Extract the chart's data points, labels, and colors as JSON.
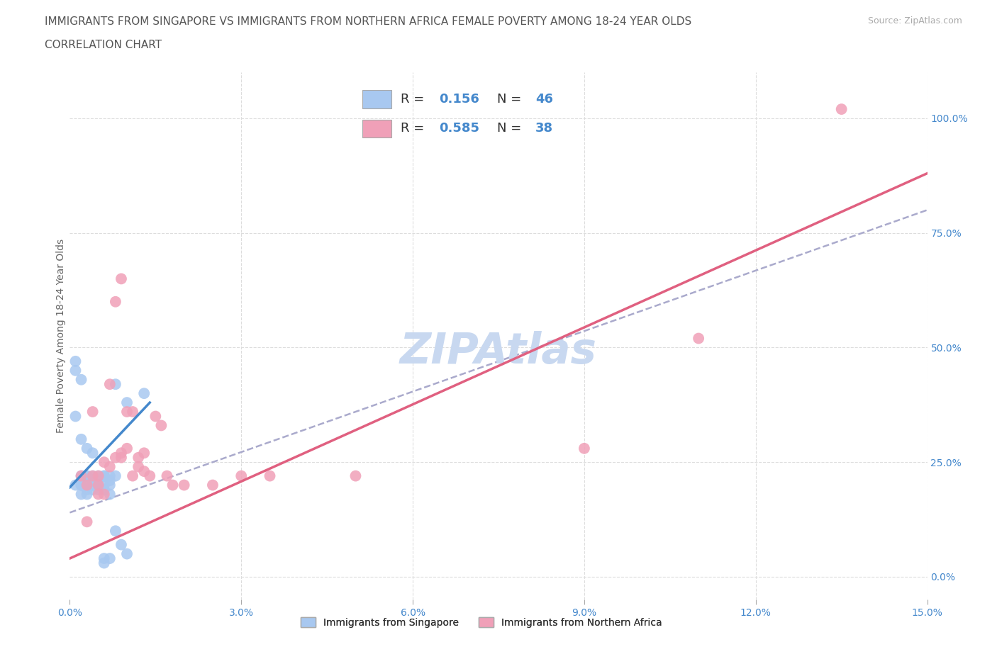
{
  "title_line1": "IMMIGRANTS FROM SINGAPORE VS IMMIGRANTS FROM NORTHERN AFRICA FEMALE POVERTY AMONG 18-24 YEAR OLDS",
  "title_line2": "CORRELATION CHART",
  "source_text": "Source: ZipAtlas.com",
  "ylabel": "Female Poverty Among 18-24 Year Olds",
  "xlim": [
    0.0,
    0.15
  ],
  "ylim": [
    -0.05,
    1.1
  ],
  "right_yticks": [
    0.0,
    0.25,
    0.5,
    0.75,
    1.0
  ],
  "right_yticklabels": [
    "0.0%",
    "25.0%",
    "50.0%",
    "75.0%",
    "100.0%"
  ],
  "xticks": [
    0.0,
    0.03,
    0.06,
    0.09,
    0.12,
    0.15
  ],
  "xticklabels": [
    "0.0%",
    "3.0%",
    "6.0%",
    "9.0%",
    "12.0%",
    "15.0%"
  ],
  "singapore_color": "#a8c8f0",
  "northern_africa_color": "#f0a0b8",
  "singapore_line_color": "#4488cc",
  "northern_africa_line_color": "#e06080",
  "dashed_line_color": "#aaaacc",
  "watermark_text": "ZIPAtlas",
  "watermark_color": "#c8d8f0",
  "background_color": "#ffffff",
  "grid_color": "#dddddd",
  "singapore_scatter": [
    [
      0.001,
      0.2
    ],
    [
      0.002,
      0.22
    ],
    [
      0.002,
      0.2
    ],
    [
      0.002,
      0.18
    ],
    [
      0.002,
      0.2
    ],
    [
      0.003,
      0.22
    ],
    [
      0.003,
      0.2
    ],
    [
      0.003,
      0.19
    ],
    [
      0.003,
      0.18
    ],
    [
      0.003,
      0.22
    ],
    [
      0.004,
      0.22
    ],
    [
      0.004,
      0.21
    ],
    [
      0.004,
      0.2
    ],
    [
      0.004,
      0.19
    ],
    [
      0.005,
      0.22
    ],
    [
      0.005,
      0.2
    ],
    [
      0.005,
      0.21
    ],
    [
      0.005,
      0.19
    ],
    [
      0.006,
      0.22
    ],
    [
      0.006,
      0.2
    ],
    [
      0.006,
      0.19
    ],
    [
      0.007,
      0.2
    ],
    [
      0.007,
      0.18
    ],
    [
      0.007,
      0.22
    ],
    [
      0.008,
      0.42
    ],
    [
      0.01,
      0.38
    ],
    [
      0.001,
      0.45
    ],
    [
      0.001,
      0.47
    ],
    [
      0.002,
      0.43
    ],
    [
      0.013,
      0.4
    ],
    [
      0.001,
      0.35
    ],
    [
      0.002,
      0.3
    ],
    [
      0.003,
      0.28
    ],
    [
      0.004,
      0.27
    ],
    [
      0.006,
      0.04
    ],
    [
      0.006,
      0.03
    ],
    [
      0.007,
      0.04
    ],
    [
      0.008,
      0.1
    ],
    [
      0.009,
      0.07
    ],
    [
      0.01,
      0.05
    ],
    [
      0.003,
      0.22
    ],
    [
      0.004,
      0.21
    ],
    [
      0.005,
      0.2
    ],
    [
      0.006,
      0.22
    ],
    [
      0.007,
      0.21
    ],
    [
      0.008,
      0.22
    ]
  ],
  "northern_africa_scatter": [
    [
      0.002,
      0.22
    ],
    [
      0.003,
      0.2
    ],
    [
      0.004,
      0.22
    ],
    [
      0.004,
      0.36
    ],
    [
      0.005,
      0.22
    ],
    [
      0.005,
      0.2
    ],
    [
      0.005,
      0.18
    ],
    [
      0.006,
      0.25
    ],
    [
      0.006,
      0.18
    ],
    [
      0.007,
      0.42
    ],
    [
      0.007,
      0.24
    ],
    [
      0.008,
      0.6
    ],
    [
      0.009,
      0.65
    ],
    [
      0.008,
      0.26
    ],
    [
      0.009,
      0.27
    ],
    [
      0.009,
      0.26
    ],
    [
      0.01,
      0.36
    ],
    [
      0.01,
      0.28
    ],
    [
      0.011,
      0.36
    ],
    [
      0.011,
      0.22
    ],
    [
      0.012,
      0.26
    ],
    [
      0.012,
      0.24
    ],
    [
      0.013,
      0.27
    ],
    [
      0.013,
      0.23
    ],
    [
      0.014,
      0.22
    ],
    [
      0.015,
      0.35
    ],
    [
      0.016,
      0.33
    ],
    [
      0.017,
      0.22
    ],
    [
      0.018,
      0.2
    ],
    [
      0.02,
      0.2
    ],
    [
      0.025,
      0.2
    ],
    [
      0.03,
      0.22
    ],
    [
      0.05,
      0.22
    ],
    [
      0.035,
      0.22
    ],
    [
      0.09,
      0.28
    ],
    [
      0.11,
      0.52
    ],
    [
      0.135,
      1.02
    ],
    [
      0.003,
      0.12
    ]
  ],
  "singapore_trend_x": [
    0.0,
    0.014
  ],
  "singapore_trend_y": [
    0.195,
    0.38
  ],
  "northern_africa_trend_x": [
    0.0,
    0.15
  ],
  "northern_africa_trend_y": [
    0.04,
    0.88
  ],
  "dashed_trend_x": [
    0.0,
    0.15
  ],
  "dashed_trend_y": [
    0.14,
    0.8
  ],
  "title_fontsize": 11,
  "axis_label_fontsize": 10,
  "tick_fontsize": 10,
  "legend_fontsize": 13
}
